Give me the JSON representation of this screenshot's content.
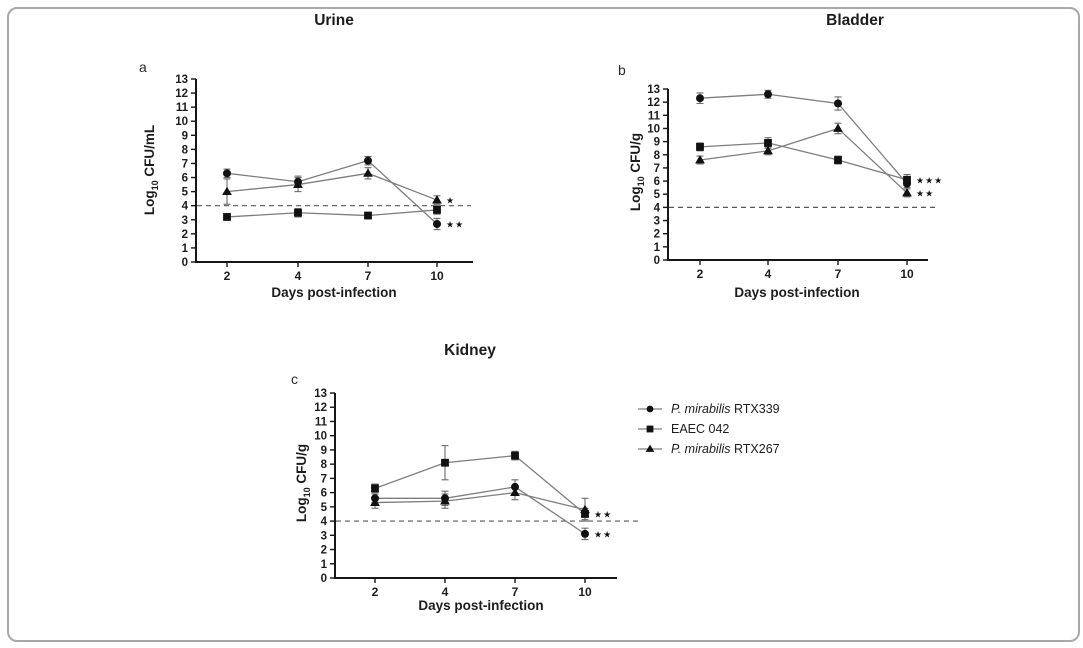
{
  "figure": {
    "border_color": "#a8a8a8",
    "background": "#ffffff"
  },
  "colors": {
    "marker": "#111111",
    "line": "#7d7d7d",
    "error_bar": "#6b6b6b",
    "dashed": "#595959",
    "axis": "#161616",
    "text": "#1c1c1c"
  },
  "legend": {
    "items": [
      {
        "marker": "circle",
        "label_italic": "P. mirabilis",
        "label_regular": " RTX339"
      },
      {
        "marker": "square",
        "label_italic": "",
        "label_regular": "EAEC 042"
      },
      {
        "marker": "triangle",
        "label_italic": "P. mirabilis",
        "label_regular": " RTX267"
      }
    ]
  },
  "chart_data": [
    {
      "type": "line",
      "panel_label": "a",
      "title": "Urine",
      "xlabel": "Days post-infection",
      "ylabel": "Log10 CFU/mL",
      "ylabel_parts": {
        "pre": "Log",
        "sub": "10",
        "post": " CFU/mL"
      },
      "categories": [
        2,
        4,
        7,
        10
      ],
      "ylim": [
        0,
        13
      ],
      "yticks": [
        0,
        1,
        2,
        3,
        4,
        5,
        6,
        7,
        8,
        9,
        10,
        11,
        12,
        13
      ],
      "dashed_line_y": 4,
      "grid": false,
      "legend_position": "none",
      "series": [
        {
          "name": "P. mirabilis RTX339",
          "marker": "circle",
          "values": [
            6.3,
            5.7,
            7.2,
            2.7
          ],
          "errors": [
            0.3,
            0.4,
            0.3,
            0.4
          ],
          "sig": "**"
        },
        {
          "name": "EAEC 042",
          "marker": "square",
          "values": [
            3.2,
            3.5,
            3.3,
            3.7
          ],
          "errors": [
            0.2,
            0.3,
            0.2,
            0.3
          ],
          "sig": null
        },
        {
          "name": "P. mirabilis RTX267",
          "marker": "triangle",
          "values": [
            5.0,
            5.5,
            6.3,
            4.4
          ],
          "errors": [
            0.9,
            0.5,
            0.4,
            0.3
          ],
          "sig": "*"
        }
      ]
    },
    {
      "type": "line",
      "panel_label": "b",
      "title": "Bladder",
      "xlabel": "Days post-infection",
      "ylabel": "Log10 CFU/g",
      "ylabel_parts": {
        "pre": "Log",
        "sub": "10",
        "post": " CFU/g"
      },
      "categories": [
        2,
        4,
        7,
        10
      ],
      "ylim": [
        0,
        13
      ],
      "yticks": [
        0,
        1,
        2,
        3,
        4,
        5,
        6,
        7,
        8,
        9,
        10,
        11,
        12,
        13
      ],
      "dashed_line_y": 4,
      "grid": false,
      "legend_position": "none",
      "series": [
        {
          "name": "P. mirabilis RTX339",
          "marker": "circle",
          "values": [
            12.3,
            12.6,
            11.9,
            5.8
          ],
          "errors": [
            0.4,
            0.3,
            0.5,
            0.3
          ],
          "sig": null
        },
        {
          "name": "EAEC 042",
          "marker": "square",
          "values": [
            8.6,
            8.9,
            7.6,
            6.1
          ],
          "errors": [
            0.3,
            0.4,
            0.3,
            0.4
          ],
          "sig": "***"
        },
        {
          "name": "P. mirabilis RTX267",
          "marker": "triangle",
          "values": [
            7.6,
            8.3,
            10.0,
            5.1
          ],
          "errors": [
            0.3,
            0.3,
            0.4,
            0.3
          ],
          "sig": "**"
        }
      ]
    },
    {
      "type": "line",
      "panel_label": "c",
      "title": "Kidney",
      "xlabel": "Days post-infection",
      "ylabel": "Log10 CFU/g",
      "ylabel_parts": {
        "pre": "Log",
        "sub": "10",
        "post": " CFU/g"
      },
      "categories": [
        2,
        4,
        7,
        10
      ],
      "ylim": [
        0,
        13
      ],
      "yticks": [
        0,
        1,
        2,
        3,
        4,
        5,
        6,
        7,
        8,
        9,
        10,
        11,
        12,
        13
      ],
      "dashed_line_y": 4,
      "grid": false,
      "legend_position": "right",
      "series": [
        {
          "name": "P. mirabilis RTX339",
          "marker": "circle",
          "values": [
            5.6,
            5.6,
            6.4,
            3.1
          ],
          "errors": [
            0.3,
            0.5,
            0.5,
            0.4
          ],
          "sig": "**"
        },
        {
          "name": "EAEC 042",
          "marker": "square",
          "values": [
            6.3,
            8.1,
            8.6,
            4.5
          ],
          "errors": [
            0.3,
            1.2,
            0.3,
            0.4
          ],
          "sig": "**"
        },
        {
          "name": "P. mirabilis RTX267",
          "marker": "triangle",
          "values": [
            5.3,
            5.4,
            6.0,
            4.8
          ],
          "errors": [
            0.4,
            0.5,
            0.5,
            0.8
          ],
          "sig": null
        }
      ]
    }
  ]
}
